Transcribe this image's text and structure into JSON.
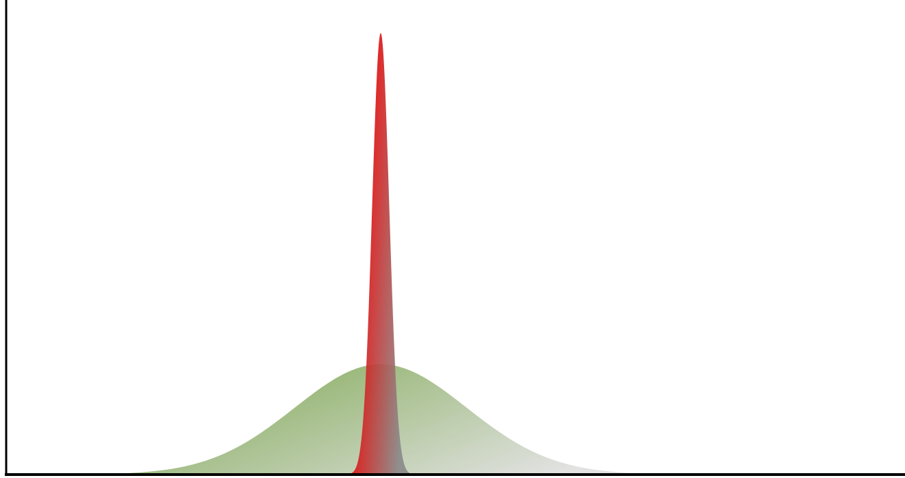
{
  "chart_data": {
    "type": "area",
    "title": "",
    "xlabel": "",
    "ylabel": "",
    "xlim": [
      -4,
      4
    ],
    "ylim": [
      0,
      4.3
    ],
    "grid": false,
    "legend": "none",
    "series": [
      {
        "mean": 0,
        "sd": 1,
        "peak": 1.0,
        "color_start": "#8fb26a",
        "color_end": "#e2e2e2"
      },
      {
        "mean": 0,
        "sd": 0.1,
        "peak": 4.0,
        "color_start": "#ee0000",
        "color_end": "#8a8a8a"
      }
    ]
  },
  "colors": {
    "axis": "#000000",
    "background": "#ffffff"
  }
}
